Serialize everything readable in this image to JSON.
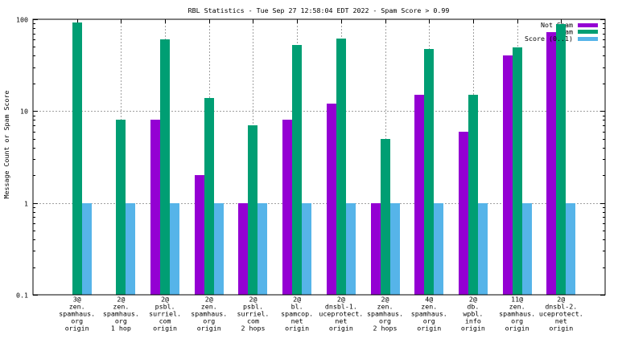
{
  "chart_data": {
    "type": "bar",
    "title": "RBL Statistics - Tue Sep 27 12:58:04 EDT 2022 - Spam Score > 0.99",
    "xlabel": "",
    "ylabel": "Message Count or Spam Score",
    "yscale": "log",
    "ylim": [
      0.1,
      100
    ],
    "yticks": [
      "100",
      "10",
      "1",
      "0.1"
    ],
    "grid": true,
    "legend_position": "top-right",
    "categories": [
      [
        "3@",
        "zen.",
        "spamhaus.",
        "org",
        "origin"
      ],
      [
        "2@",
        "zen.",
        "spamhaus.",
        "org",
        "1 hop"
      ],
      [
        "2@",
        "psbl.",
        "surriel.",
        "com",
        "origin"
      ],
      [
        "2@",
        "zen.",
        "spamhaus.",
        "org",
        "origin"
      ],
      [
        "2@",
        "psbl.",
        "surriel.",
        "com",
        "2 hops"
      ],
      [
        "2@",
        "bl.",
        "spamcop.",
        "net",
        "origin"
      ],
      [
        "2@",
        "dnsbl-1.",
        "uceprotect.",
        "net",
        "origin"
      ],
      [
        "2@",
        "zen.",
        "spamhaus.",
        "org",
        "2 hops"
      ],
      [
        "4@",
        "zen.",
        "spamhaus.",
        "org",
        "origin"
      ],
      [
        "2@",
        "db.",
        "wpbl.",
        "info",
        "origin"
      ],
      [
        "11@",
        "zen.",
        "spamhaus.",
        "org",
        "origin"
      ],
      [
        "2@",
        "dnsbl-2.",
        "uceprotect.",
        "net",
        "origin"
      ]
    ],
    "series": [
      {
        "name": "Not Spam",
        "color": "#9400d3",
        "values": [
          0,
          0,
          8,
          2,
          1,
          8,
          12,
          1,
          15,
          6,
          40,
          72
        ]
      },
      {
        "name": "Spam",
        "color": "#009e73",
        "values": [
          93,
          8,
          60,
          14,
          7,
          53,
          62,
          5,
          47,
          15,
          49,
          89
        ]
      },
      {
        "name": "Score (0..1)",
        "color": "#56b4e9",
        "values": [
          1,
          1,
          1,
          1,
          1,
          1,
          1,
          1,
          1,
          1,
          1,
          1
        ]
      }
    ]
  }
}
